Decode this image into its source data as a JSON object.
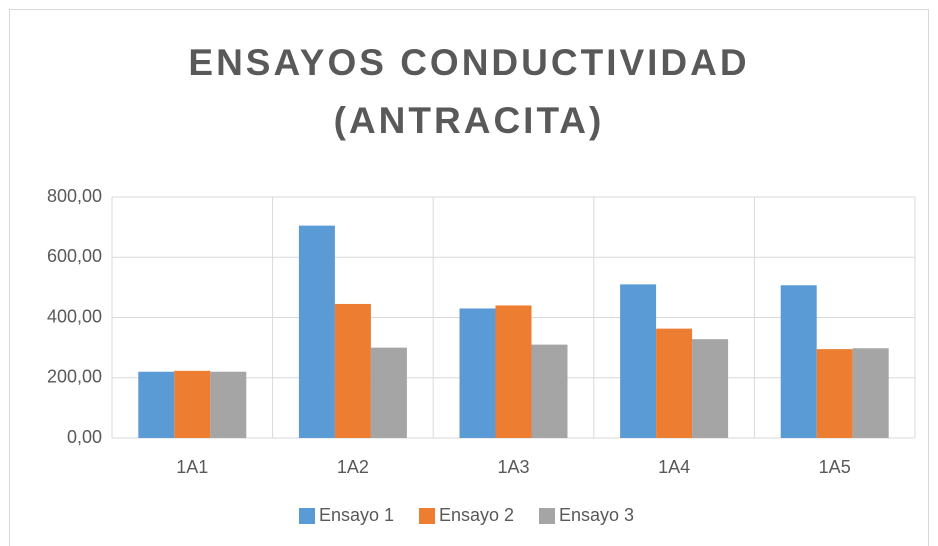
{
  "chart_data": {
    "type": "bar",
    "title": "ENSAYOS CONDUCTIVIDAD (ANTRACITA)",
    "categories": [
      "1A1",
      "1A2",
      "1A3",
      "1A4",
      "1A5"
    ],
    "series": [
      {
        "name": "Ensayo 1",
        "color": "#5b9bd5",
        "values": [
          220,
          705,
          430,
          510,
          507
        ]
      },
      {
        "name": "Ensayo 2",
        "color": "#ed7d31",
        "values": [
          223,
          445,
          440,
          363,
          295
        ]
      },
      {
        "name": "Ensayo 3",
        "color": "#a5a5a5",
        "values": [
          220,
          300,
          310,
          328,
          298
        ]
      }
    ],
    "ylim": [
      0,
      800
    ],
    "yticks": [
      {
        "value": 0,
        "label": "0,00"
      },
      {
        "value": 200,
        "label": "200,00"
      },
      {
        "value": 400,
        "label": "400,00"
      },
      {
        "value": 600,
        "label": "600,00"
      },
      {
        "value": 800,
        "label": "800,00"
      }
    ],
    "grid": true,
    "legend": "bottom"
  }
}
